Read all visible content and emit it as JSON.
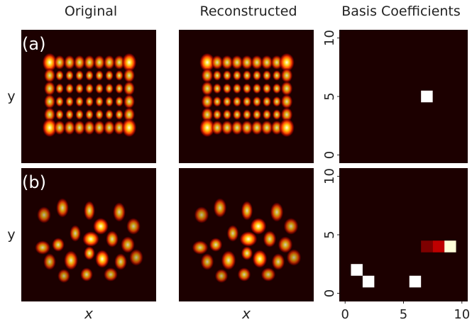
{
  "figure": {
    "column_titles": [
      "Original",
      "Reconstructed",
      "Basis Coefficients"
    ],
    "xlabels": [
      "x",
      "x"
    ]
  },
  "chart_data": [
    {
      "type": "heatmap",
      "panel_label": "(a)",
      "ylabel": "y",
      "xlim": [
        -0.5,
        10.5
      ],
      "ylim": [
        -0.7,
        10.7
      ],
      "yticks": [
        0,
        5,
        10
      ],
      "cells": {
        "x": [
          7
        ],
        "y": [
          5
        ],
        "values": [
          1.0
        ]
      }
    },
    {
      "type": "heatmap",
      "panel_label": "(b)",
      "ylabel": "y",
      "xlim": [
        -0.5,
        10.5
      ],
      "ylim": [
        -0.7,
        10.7
      ],
      "xticks": [
        0,
        5,
        10
      ],
      "yticks": [
        0,
        5,
        10
      ],
      "cells": {
        "x": [
          1,
          2,
          6,
          9,
          8,
          7
        ],
        "y": [
          2,
          1,
          1,
          4,
          4,
          4
        ],
        "values": [
          1.0,
          1.0,
          1.0,
          0.95,
          0.25,
          0.15
        ]
      }
    }
  ]
}
